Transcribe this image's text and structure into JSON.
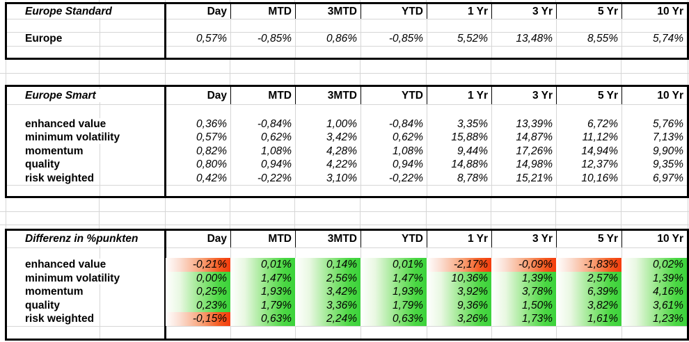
{
  "columns": [
    "Day",
    "MTD",
    "3MTD",
    "YTD",
    "1 Yr",
    "3 Yr",
    "5 Yr",
    "10 Yr"
  ],
  "tables": [
    {
      "title": "Europe Standard",
      "conditional_formatting": false,
      "rows": [
        {
          "label": "Europe",
          "values": [
            "0,57%",
            "-0,85%",
            "0,86%",
            "-0,85%",
            "5,52%",
            "13,48%",
            "8,55%",
            "5,74%"
          ]
        }
      ]
    },
    {
      "title": "Europe Smart",
      "conditional_formatting": false,
      "rows": [
        {
          "label": "enhanced value",
          "values": [
            "0,36%",
            "-0,84%",
            "1,00%",
            "-0,84%",
            "3,35%",
            "13,39%",
            "6,72%",
            "5,76%"
          ]
        },
        {
          "label": "minimum volatility",
          "values": [
            "0,57%",
            "0,62%",
            "3,42%",
            "0,62%",
            "15,88%",
            "14,87%",
            "11,12%",
            "7,13%"
          ]
        },
        {
          "label": "momentum",
          "values": [
            "0,82%",
            "1,08%",
            "4,28%",
            "1,08%",
            "9,44%",
            "17,26%",
            "14,94%",
            "9,90%"
          ]
        },
        {
          "label": "quality",
          "values": [
            "0,80%",
            "0,94%",
            "4,22%",
            "0,94%",
            "14,88%",
            "14,98%",
            "12,37%",
            "9,35%"
          ]
        },
        {
          "label": "risk weighted",
          "values": [
            "0,42%",
            "-0,22%",
            "3,10%",
            "-0,22%",
            "8,78%",
            "15,21%",
            "10,16%",
            "6,97%"
          ]
        }
      ]
    },
    {
      "title": "Differenz in %punkten",
      "conditional_formatting": true,
      "rows": [
        {
          "label": "enhanced value",
          "values": [
            "-0,21%",
            "0,01%",
            "0,14%",
            "0,01%",
            "-2,17%",
            "-0,09%",
            "-1,83%",
            "0,02%"
          ]
        },
        {
          "label": "minimum volatility",
          "values": [
            "0,00%",
            "1,47%",
            "2,56%",
            "1,47%",
            "10,36%",
            "1,39%",
            "2,57%",
            "1,39%"
          ]
        },
        {
          "label": "momentum",
          "values": [
            "0,25%",
            "1,93%",
            "3,42%",
            "1,93%",
            "3,92%",
            "3,78%",
            "6,39%",
            "4,16%"
          ]
        },
        {
          "label": "quality",
          "values": [
            "0,23%",
            "1,79%",
            "3,36%",
            "1,79%",
            "9,36%",
            "1,50%",
            "3,82%",
            "3,61%"
          ]
        },
        {
          "label": "risk weighted",
          "values": [
            "-0,15%",
            "0,63%",
            "2,24%",
            "0,63%",
            "3,26%",
            "1,73%",
            "1,61%",
            "1,23%"
          ]
        }
      ]
    }
  ],
  "colors": {
    "positive_fill": "#3bd23b",
    "negative_fill": "#f43c0d",
    "gridline": "#d6d6d6",
    "table_border": "#000000"
  }
}
